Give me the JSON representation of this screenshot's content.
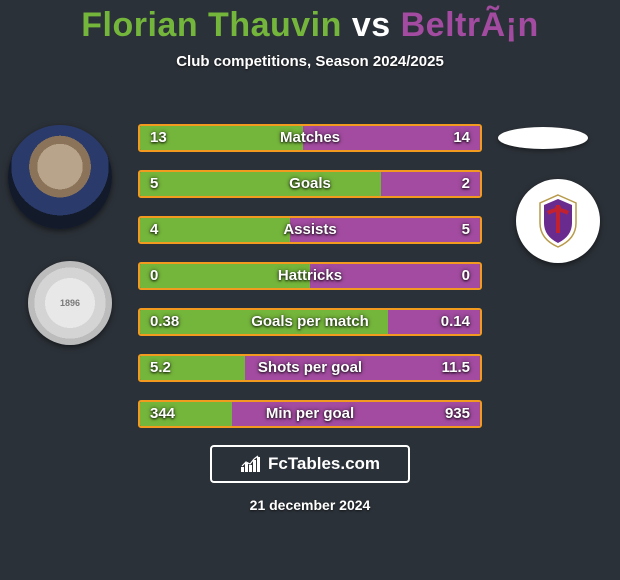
{
  "title": {
    "player1_name": "Florian Thauvin",
    "vs": " vs ",
    "player2_name": "BeltrÃ¡n",
    "player1_color": "#74b53b",
    "vs_color": "#ffffff",
    "player2_color": "#a24ba0"
  },
  "subtitle": "Club competitions, Season 2024/2025",
  "colors": {
    "background": "#2b3138",
    "border": "#f29a1f",
    "left_fill": "#74b53b",
    "right_fill": "#a24ba0",
    "text": "#ffffff"
  },
  "club2_badge": {
    "shield_fill": "#6a2b8f",
    "accent": "#c2222f",
    "white": "#ffffff"
  },
  "bars": [
    {
      "label": "Matches",
      "left_val": "13",
      "right_val": "14",
      "left_pct": 48,
      "right_pct": 52
    },
    {
      "label": "Goals",
      "left_val": "5",
      "right_val": "2",
      "left_pct": 71,
      "right_pct": 29
    },
    {
      "label": "Assists",
      "left_val": "4",
      "right_val": "5",
      "left_pct": 44,
      "right_pct": 56
    },
    {
      "label": "Hattricks",
      "left_val": "0",
      "right_val": "0",
      "left_pct": 50,
      "right_pct": 50
    },
    {
      "label": "Goals per match",
      "left_val": "0.38",
      "right_val": "0.14",
      "left_pct": 73,
      "right_pct": 27
    },
    {
      "label": "Shots per goal",
      "left_val": "5.2",
      "right_val": "11.5",
      "left_pct": 31,
      "right_pct": 69
    },
    {
      "label": "Min per goal",
      "left_val": "344",
      "right_val": "935",
      "left_pct": 27,
      "right_pct": 73
    }
  ],
  "footer_brand": "FcTables.com",
  "date": "21 december 2024"
}
